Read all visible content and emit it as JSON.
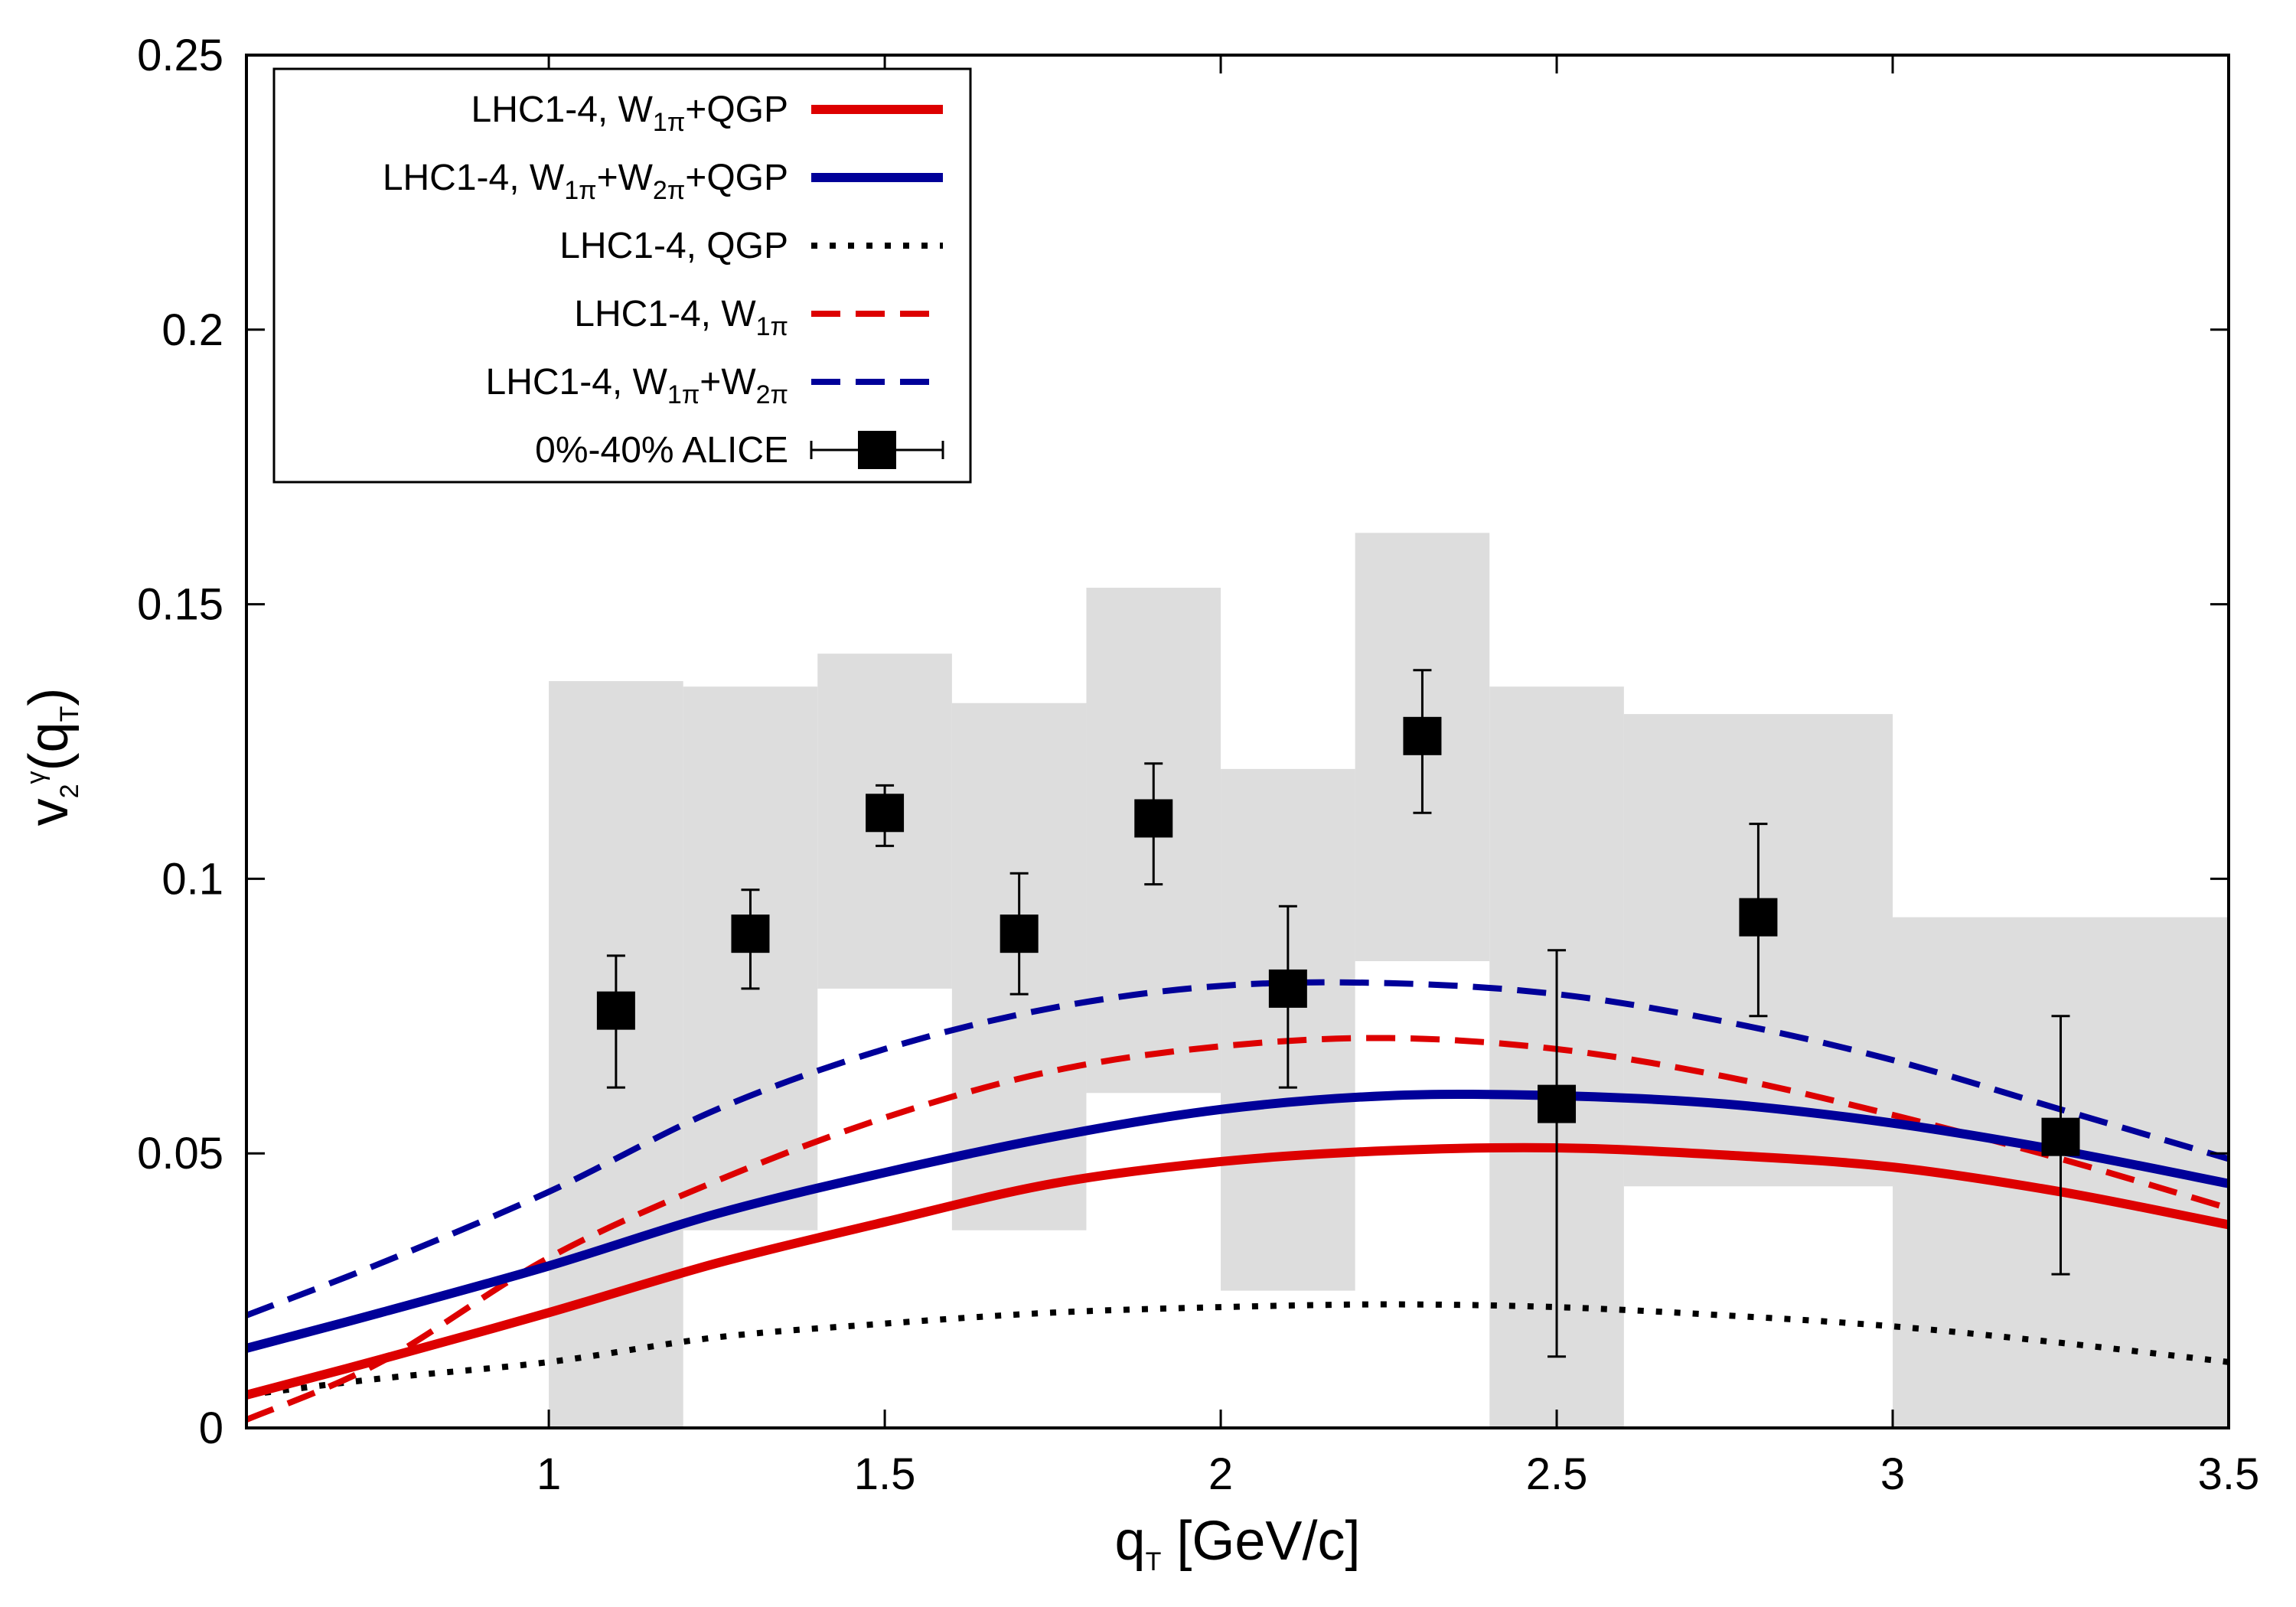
{
  "chart_data": {
    "type": "line",
    "title": "",
    "xlabel": "q_T [GeV/c]",
    "ylabel": "v_2^γ(q_T)",
    "xlim": [
      0.55,
      3.5
    ],
    "ylim": [
      0,
      0.25
    ],
    "xticks": [
      1,
      1.5,
      2,
      2.5,
      3,
      3.5
    ],
    "xtick_labels": [
      "1",
      "1.5",
      "2",
      "2.5",
      "3",
      "3.5"
    ],
    "yticks": [
      0,
      0.05,
      0.1,
      0.15,
      0.2,
      0.25
    ],
    "ytick_labels": [
      "0",
      "0.05",
      "0.1",
      "0.15",
      "0.2",
      "0.25"
    ],
    "grid": false,
    "legend_position": "top-left",
    "series": [
      {
        "name": "LHC1-4, W1π+QGP",
        "style": "solid",
        "color": "#dd0000",
        "x": [
          0.55,
          0.75,
          1.0,
          1.25,
          1.5,
          1.75,
          2.0,
          2.25,
          2.5,
          2.75,
          3.0,
          3.25,
          3.5
        ],
        "y": [
          0.006,
          0.0125,
          0.021,
          0.03,
          0.0375,
          0.0445,
          0.0485,
          0.0505,
          0.051,
          0.0497,
          0.0475,
          0.043,
          0.037
        ]
      },
      {
        "name": "LHC1-4, W1π+W2π+QGP",
        "style": "solid",
        "color": "#000099",
        "x": [
          0.55,
          0.75,
          1.0,
          1.25,
          1.5,
          1.75,
          2.0,
          2.25,
          2.5,
          2.75,
          3.0,
          3.25,
          3.5
        ],
        "y": [
          0.0145,
          0.021,
          0.0295,
          0.039,
          0.0465,
          0.053,
          0.058,
          0.0605,
          0.0605,
          0.059,
          0.0555,
          0.0505,
          0.0445
        ]
      },
      {
        "name": "LHC1-4, QGP",
        "style": "dotted",
        "color": "#000000",
        "x": [
          0.55,
          0.75,
          1.0,
          1.25,
          1.5,
          1.75,
          2.0,
          2.25,
          2.5,
          2.75,
          3.0,
          3.25,
          3.5
        ],
        "y": [
          0.006,
          0.009,
          0.012,
          0.0165,
          0.019,
          0.021,
          0.022,
          0.0225,
          0.022,
          0.0205,
          0.0185,
          0.0155,
          0.012
        ]
      },
      {
        "name": "LHC1-4, W1π",
        "style": "dashed",
        "color": "#dd0000",
        "x": [
          0.55,
          0.75,
          1.0,
          1.25,
          1.5,
          1.75,
          2.0,
          2.25,
          2.5,
          2.75,
          3.0,
          3.25,
          3.5
        ],
        "y": [
          0.0015,
          0.012,
          0.031,
          0.045,
          0.0565,
          0.065,
          0.0695,
          0.071,
          0.069,
          0.064,
          0.057,
          0.049,
          0.04
        ]
      },
      {
        "name": "LHC1-4, W1π+W2π",
        "style": "dashed",
        "color": "#000099",
        "x": [
          0.55,
          0.75,
          1.0,
          1.25,
          1.5,
          1.75,
          2.0,
          2.25,
          2.5,
          2.75,
          3.0,
          3.25,
          3.5
        ],
        "y": [
          0.0205,
          0.03,
          0.043,
          0.058,
          0.069,
          0.0765,
          0.0805,
          0.081,
          0.079,
          0.074,
          0.067,
          0.058,
          0.049
        ]
      }
    ],
    "data_points": {
      "name": "0%-40% ALICE",
      "marker": "square",
      "color": "#000000",
      "x": [
        1.1,
        1.3,
        1.5,
        1.7,
        1.9,
        2.1,
        2.3,
        2.5,
        2.8,
        3.25
      ],
      "y": [
        0.076,
        0.09,
        0.112,
        0.09,
        0.111,
        0.08,
        0.126,
        0.059,
        0.093,
        0.053
      ],
      "err_low": [
        0.014,
        0.01,
        0.006,
        0.011,
        0.012,
        0.018,
        0.014,
        0.046,
        0.018,
        0.025
      ],
      "err_high": [
        0.01,
        0.008,
        0.005,
        0.011,
        0.01,
        0.015,
        0.012,
        0.028,
        0.017,
        0.022
      ]
    },
    "systematic_bands": {
      "color": "#dddddd",
      "bins": [
        {
          "x0": 1.0,
          "x1": 1.2,
          "y0": 0.0,
          "y1": 0.136
        },
        {
          "x0": 1.2,
          "x1": 1.4,
          "y0": 0.036,
          "y1": 0.135
        },
        {
          "x0": 1.4,
          "x1": 1.6,
          "y0": 0.08,
          "y1": 0.141
        },
        {
          "x0": 1.6,
          "x1": 1.8,
          "y0": 0.036,
          "y1": 0.132
        },
        {
          "x0": 1.8,
          "x1": 2.0,
          "y0": 0.061,
          "y1": 0.153
        },
        {
          "x0": 2.0,
          "x1": 2.2,
          "y0": 0.025,
          "y1": 0.12
        },
        {
          "x0": 2.2,
          "x1": 2.4,
          "y0": 0.085,
          "y1": 0.163
        },
        {
          "x0": 2.4,
          "x1": 2.6,
          "y0": 0.0,
          "y1": 0.135
        },
        {
          "x0": 2.6,
          "x1": 3.0,
          "y0": 0.044,
          "y1": 0.13
        },
        {
          "x0": 3.0,
          "x1": 3.5,
          "y0": 0.0,
          "y1": 0.093
        }
      ]
    },
    "legend": [
      {
        "main": "LHC1-4, W",
        "parts": [
          [
            "1π",
            "sub"
          ],
          [
            "+QGP",
            "text"
          ]
        ]
      },
      {
        "main": "LHC1-4, W",
        "parts": [
          [
            "1π",
            "sub"
          ],
          [
            "+W",
            "text"
          ],
          [
            "2π",
            "sub"
          ],
          [
            "+QGP",
            "text"
          ]
        ]
      },
      {
        "main": "LHC1-4, QGP",
        "parts": []
      },
      {
        "main": "LHC1-4, W",
        "parts": [
          [
            "1π",
            "sub"
          ]
        ]
      },
      {
        "main": "LHC1-4, W",
        "parts": [
          [
            "1π",
            "sub"
          ],
          [
            "+W",
            "text"
          ],
          [
            "2π",
            "sub"
          ]
        ]
      },
      {
        "main": "0%-40% ALICE",
        "parts": []
      }
    ]
  }
}
